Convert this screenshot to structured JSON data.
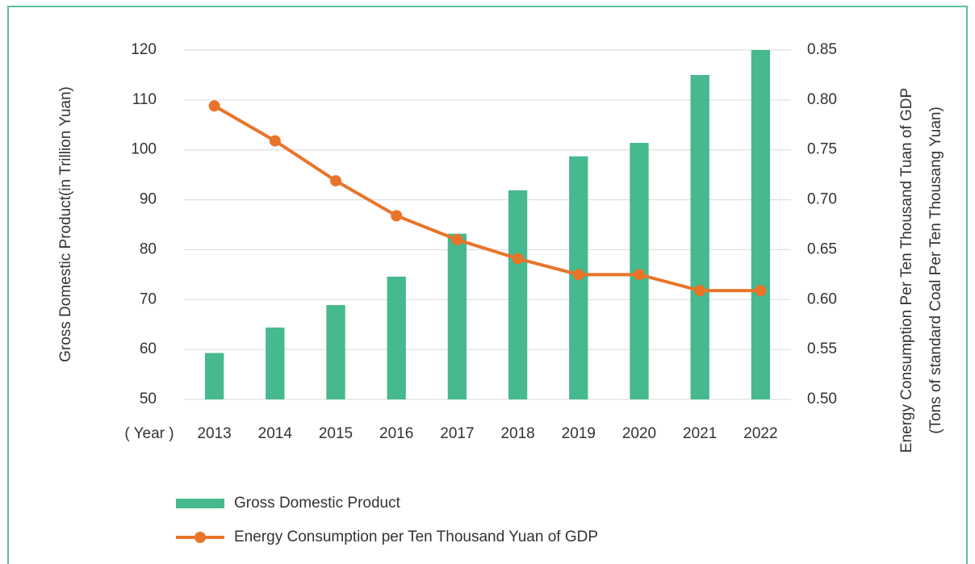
{
  "chart_data": {
    "type": "bar_line",
    "categories": [
      "2013",
      "2014",
      "2015",
      "2016",
      "2017",
      "2018",
      "2019",
      "2020",
      "2021",
      "2022"
    ],
    "x_axis_label": "( Year )",
    "y_axis_label": "Gross Domestic Product(in Trillion Yuan)",
    "y2_axis_label": [
      "Energy Consumption Per Ten Thousand Tuan of GDP",
      "(Tons of standard Coal Per Ten Thousang Yuan)"
    ],
    "series": [
      {
        "name": "Gross Domestic Product",
        "color": "#46b98e",
        "kind": "bar",
        "axis": "y",
        "values": [
          59.3,
          64.4,
          68.9,
          74.6,
          83.2,
          91.9,
          98.7,
          101.4,
          115.0,
          120.0
        ]
      },
      {
        "name": "Energy Consumption per Ten Thousand Yuan of GDP",
        "color": "#e8742a",
        "kind": "line",
        "axis": "y2",
        "values": [
          0.794,
          0.759,
          0.719,
          0.684,
          0.66,
          0.641,
          0.625,
          0.625,
          0.609,
          0.609
        ]
      }
    ],
    "ylim": [
      50,
      120
    ],
    "yticks": [
      50,
      60,
      70,
      80,
      90,
      100,
      110,
      120
    ],
    "y2lim": [
      0.5,
      0.85
    ],
    "y2ticks": [
      {
        "value": 0.5,
        "label": "0.50"
      },
      0.55,
      {
        "value": 0.6,
        "label": "0.60"
      },
      0.65,
      {
        "value": 0.7,
        "label": "0.70"
      },
      0.75,
      {
        "value": 0.8,
        "label": "0.80"
      },
      0.85
    ],
    "grid": true
  }
}
